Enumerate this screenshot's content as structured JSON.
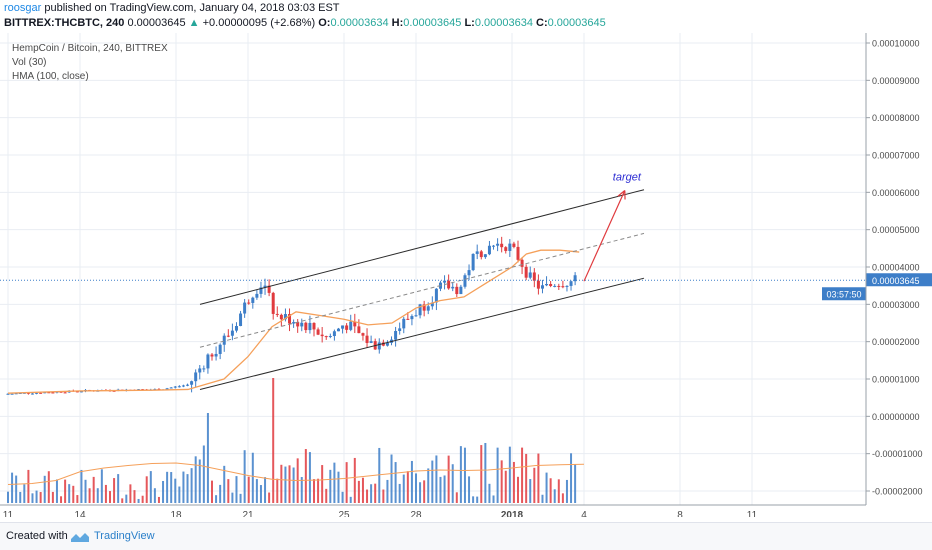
{
  "header": {
    "user": "roosgar",
    "published_text": "published on TradingView.com, January 04, 2018 03:03 EST",
    "symbol": "BITTREX:THCBTC, 240",
    "last": "0.00003645",
    "arrow": "▲",
    "change": "+0.00000095 (+2.68%)",
    "o_label": "O:",
    "o_value": "0.00003634",
    "h_label": "H:",
    "h_value": "0.00003645",
    "l_label": "L:",
    "l_value": "0.00003634",
    "c_label": "C:",
    "c_value": "0.00003645"
  },
  "legend": {
    "title": "HempCoin / Bitcoin, 240, BITTREX",
    "vol": "Vol (30)",
    "hma": "HMA (100, close)"
  },
  "annotation": {
    "target": "target"
  },
  "price_label": {
    "value": "0.00003645",
    "countdown": "03:57:50"
  },
  "footer": {
    "created_with": "Created with",
    "brand": "TradingView"
  },
  "colors": {
    "up": "#3d7ec8",
    "down": "#e03a3e",
    "hma": "#f5a05a",
    "channel": "#2b2b2b",
    "grid": "#e9edf3",
    "target_text": "#2b2bd2",
    "arrow": "#e03a3e",
    "price_line": "#3d7ec8"
  },
  "chart_data": {
    "type": "candlestick",
    "yticks": [
      "0.00010000",
      "0.00009000",
      "0.00008000",
      "0.00007000",
      "0.00006000",
      "0.00005000",
      "0.00004000",
      "0.00003000",
      "0.00002000",
      "0.00001000",
      "0.00000000",
      "-0.00001000",
      "-0.00002000"
    ],
    "xticks": [
      {
        "day": 11,
        "label": "11"
      },
      {
        "day": 14,
        "label": "14"
      },
      {
        "day": 18,
        "label": "18"
      },
      {
        "day": 21,
        "label": "21"
      },
      {
        "day": 25,
        "label": "25"
      },
      {
        "day": 28,
        "label": "28"
      },
      {
        "day": 32,
        "label": "2018"
      },
      {
        "day": 35,
        "label": "4"
      },
      {
        "day": 39,
        "label": "8"
      },
      {
        "day": 42,
        "label": "11"
      }
    ],
    "guide_points": [
      [
        11,
        0.6
      ],
      [
        13,
        0.65
      ],
      [
        15,
        0.7
      ],
      [
        17.5,
        0.72
      ],
      [
        18.7,
        0.85
      ],
      [
        19.5,
        1.6
      ],
      [
        20.5,
        2.3
      ],
      [
        21.3,
        3.3
      ],
      [
        21.8,
        3.6
      ],
      [
        22.3,
        2.7
      ],
      [
        23,
        2.6
      ],
      [
        23.8,
        2.4
      ],
      [
        24.5,
        2.1
      ],
      [
        25.2,
        2.5
      ],
      [
        25.8,
        2.2
      ],
      [
        26.4,
        1.9
      ],
      [
        27,
        2.1
      ],
      [
        27.8,
        2.6
      ],
      [
        28.5,
        3.0
      ],
      [
        29.3,
        3.5
      ],
      [
        30,
        3.4
      ],
      [
        30.5,
        4.2
      ],
      [
        31,
        4.5
      ],
      [
        31.5,
        4.6
      ],
      [
        32,
        4.6
      ],
      [
        32.5,
        4.2
      ],
      [
        33,
        3.6
      ],
      [
        33.5,
        3.4
      ],
      [
        34,
        3.6
      ],
      [
        34.8,
        3.62
      ]
    ],
    "hma": [
      [
        11,
        0.62
      ],
      [
        14,
        0.68
      ],
      [
        17,
        0.7
      ],
      [
        18.5,
        0.72
      ],
      [
        20,
        1.0
      ],
      [
        21,
        1.6
      ],
      [
        22,
        2.4
      ],
      [
        23,
        2.8
      ],
      [
        24,
        2.7
      ],
      [
        25,
        2.6
      ],
      [
        26,
        2.45
      ],
      [
        27,
        2.5
      ],
      [
        28,
        2.9
      ],
      [
        29,
        3.1
      ],
      [
        30,
        3.2
      ],
      [
        31,
        3.6
      ],
      [
        32,
        4.0
      ],
      [
        32.6,
        4.35
      ],
      [
        33.2,
        4.45
      ],
      [
        34,
        4.45
      ],
      [
        34.8,
        4.4
      ]
    ],
    "channel": {
      "upper": [
        [
          19,
          3.0
        ],
        [
          37.5,
          6.07
        ]
      ],
      "middle": [
        [
          19,
          1.85
        ],
        [
          37.5,
          4.9
        ]
      ],
      "lower": [
        [
          19,
          0.72
        ],
        [
          37.5,
          3.7
        ]
      ]
    },
    "vol_avg": [
      [
        11,
        74
      ],
      [
        12,
        78
      ],
      [
        13,
        90
      ],
      [
        14,
        125
      ],
      [
        15,
        140
      ],
      [
        16,
        150
      ],
      [
        17,
        158
      ],
      [
        18,
        160
      ],
      [
        19,
        150
      ],
      [
        20,
        130
      ],
      [
        21,
        110
      ],
      [
        22,
        95
      ],
      [
        23,
        90
      ],
      [
        24,
        92
      ],
      [
        25,
        98
      ],
      [
        26,
        108
      ],
      [
        27,
        118
      ],
      [
        28,
        128
      ],
      [
        29,
        132
      ],
      [
        30,
        130
      ],
      [
        31,
        132
      ],
      [
        32,
        140
      ],
      [
        33,
        150
      ],
      [
        34,
        153
      ],
      [
        35,
        155
      ]
    ],
    "target_arrow": [
      [
        35,
        3.62
      ],
      [
        36.7,
        6.05
      ]
    ]
  }
}
